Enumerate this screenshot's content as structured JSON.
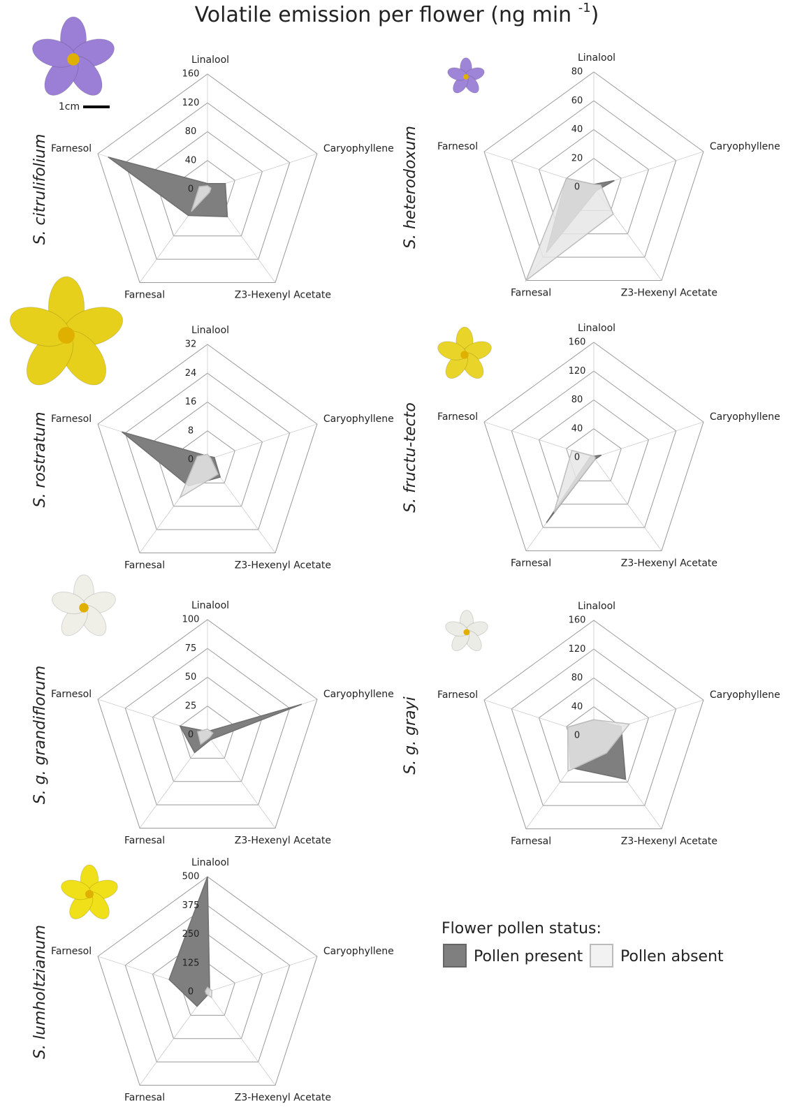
{
  "title": "Volatile emission per flower (ng min",
  "title_superscript": "-1",
  "title_end": ")",
  "scale_label": "1cm",
  "legend_title": "Flower pollen status:",
  "chart_data": [
    {
      "type": "radar",
      "title": "S. citrulifolium",
      "categories": [
        "Linalool",
        "Caryophyllene",
        "Z3-Hexenyl Acetate",
        "Farnesal",
        "Farnesol"
      ],
      "rlim": [
        0,
        160
      ],
      "rticks": [
        0,
        40,
        80,
        120,
        160
      ],
      "series": [
        {
          "name": "Pollen present",
          "color": "#7f7f7f",
          "values": [
            8,
            26,
            47,
            45,
            145
          ]
        },
        {
          "name": "Pollen absent",
          "color": "#e6e6e6",
          "values": [
            5,
            5,
            5,
            38,
            12
          ]
        }
      ]
    },
    {
      "type": "radar",
      "title": "S. heterodoxum",
      "categories": [
        "Linalool",
        "Caryophyllene",
        "Z3-Hexenyl Acetate",
        "Farnesal",
        "Farnesol"
      ],
      "rlim": [
        0,
        80
      ],
      "rticks": [
        0,
        20,
        40,
        60,
        80
      ],
      "series": [
        {
          "name": "Pollen present",
          "color": "#7f7f7f",
          "values": [
            2,
            15,
            3,
            56,
            20
          ]
        },
        {
          "name": "Pollen absent",
          "color": "#e6e6e6",
          "values": [
            2,
            5,
            23,
            80,
            20
          ]
        }
      ]
    },
    {
      "type": "radar",
      "title": "S. rostratum",
      "categories": [
        "Linalool",
        "Caryophyllene",
        "Z3-Hexenyl Acetate",
        "Farnesal",
        "Farnesol"
      ],
      "rlim": [
        0,
        32
      ],
      "rticks": [
        0,
        8,
        16,
        24,
        32
      ],
      "series": [
        {
          "name": "Pollen present",
          "color": "#7f7f7f",
          "values": [
            1,
            2,
            6,
            9,
            25
          ]
        },
        {
          "name": "Pollen absent",
          "color": "#e6e6e6",
          "values": [
            1.5,
            1,
            5,
            13,
            3
          ]
        }
      ]
    },
    {
      "type": "radar",
      "title": "S. fructu-tecto",
      "categories": [
        "Linalool",
        "Caryophyllene",
        "Z3-Hexenyl Acetate",
        "Farnesal",
        "Farnesol"
      ],
      "rlim": [
        0,
        160
      ],
      "rticks": [
        0,
        40,
        80,
        120,
        160
      ],
      "series": [
        {
          "name": "Pollen present",
          "color": "#7f7f7f",
          "values": [
            2,
            11,
            3,
            112,
            5
          ]
        },
        {
          "name": "Pollen absent",
          "color": "#e6e6e6",
          "values": [
            2,
            2,
            3,
            94,
            32
          ]
        }
      ]
    },
    {
      "type": "radar",
      "title": "S. g. grandiflorum",
      "categories": [
        "Linalool",
        "Caryophyllene",
        "Z3-Hexenyl Acetate",
        "Farnesal",
        "Farnesol"
      ],
      "rlim": [
        0,
        100
      ],
      "rticks": [
        0,
        25,
        50,
        75,
        100
      ],
      "series": [
        {
          "name": "Pollen present",
          "color": "#7f7f7f",
          "values": [
            3,
            86,
            5,
            19,
            25
          ]
        },
        {
          "name": "Pollen absent",
          "color": "#e6e6e6",
          "values": [
            5,
            5,
            3,
            10,
            9
          ]
        }
      ]
    },
    {
      "type": "radar",
      "title": "S. g. grayi",
      "categories": [
        "Linalool",
        "Caryophyllene",
        "Z3-Hexenyl Acetate",
        "Farnesal",
        "Farnesol"
      ],
      "rlim": [
        0,
        160
      ],
      "rticks": [
        0,
        40,
        80,
        120,
        160
      ],
      "series": [
        {
          "name": "Pollen present",
          "color": "#7f7f7f",
          "values": [
            22,
            40,
            75,
            55,
            38
          ]
        },
        {
          "name": "Pollen absent",
          "color": "#e6e6e6",
          "values": [
            22,
            52,
            30,
            61,
            38
          ]
        }
      ]
    },
    {
      "type": "radar",
      "title": "S. lumholtzianum",
      "categories": [
        "Linalool",
        "Caryophyllene",
        "Z3-Hexenyl Acetate",
        "Farnesal",
        "Farnesol"
      ],
      "rlim": [
        0,
        500
      ],
      "rticks": [
        0,
        125,
        250,
        375,
        500
      ],
      "series": [
        {
          "name": "Pollen present",
          "color": "#7f7f7f",
          "values": [
            500,
            10,
            10,
            77,
            175
          ]
        },
        {
          "name": "Pollen absent",
          "color": "#e6e6e6",
          "values": [
            20,
            20,
            30,
            10,
            10
          ]
        }
      ]
    }
  ]
}
